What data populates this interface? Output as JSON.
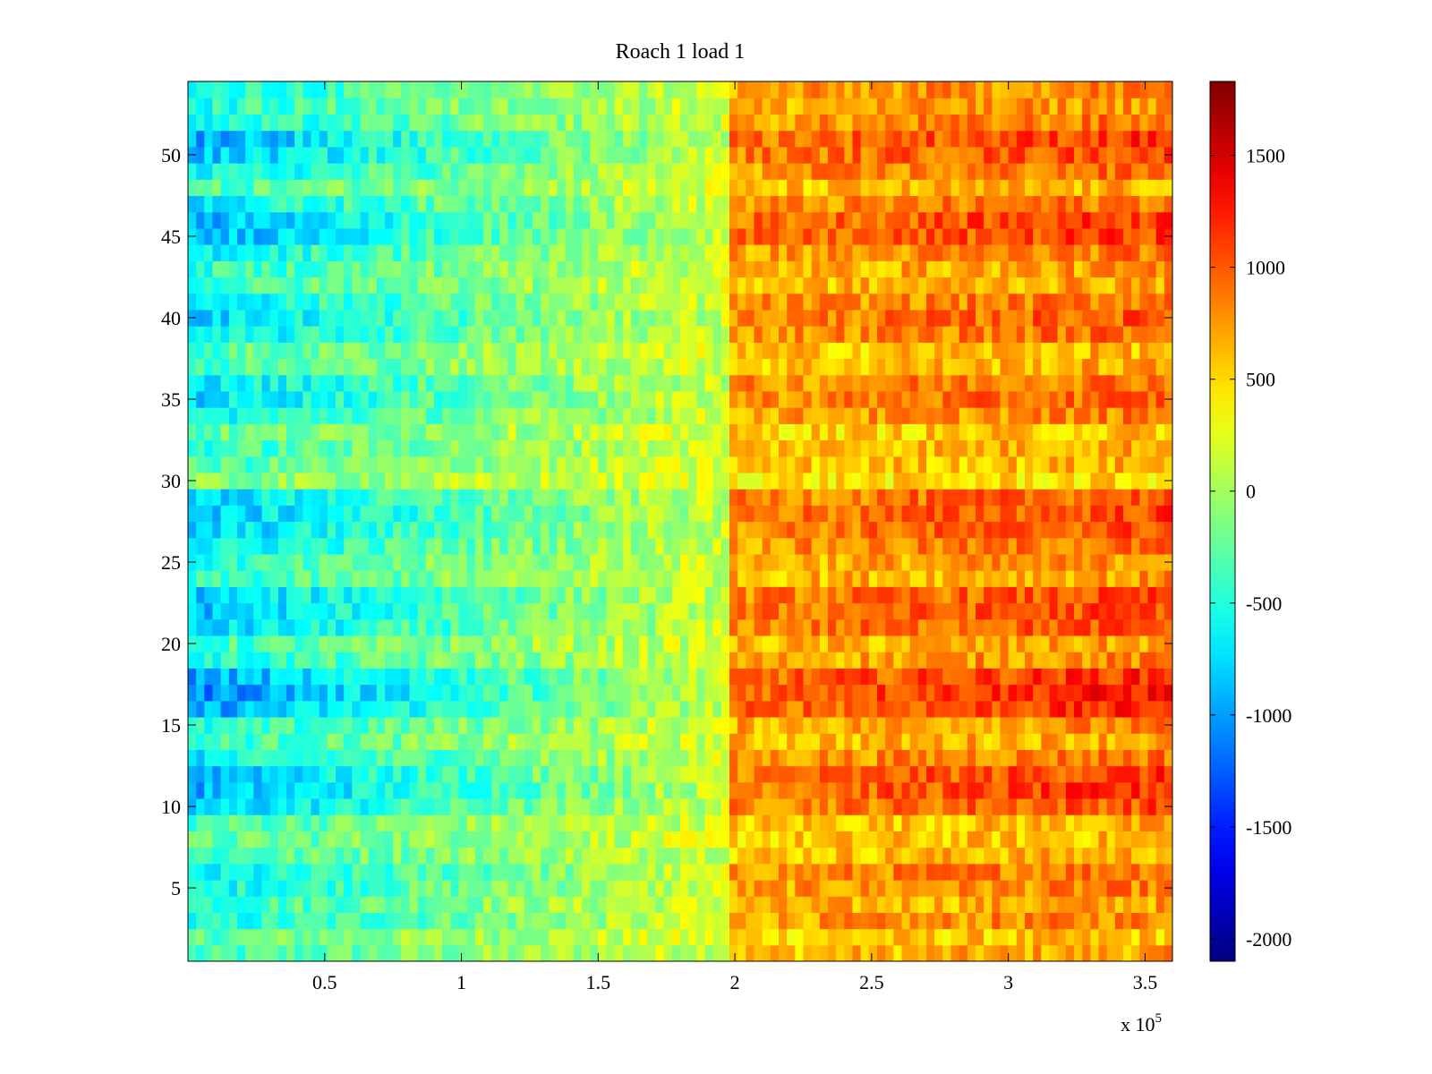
{
  "chart_data": {
    "type": "heatmap",
    "title": "Roach 1 load 1",
    "xlabel": "",
    "ylabel": "",
    "x_multiplier_label": "x 10",
    "x_multiplier_exponent": "5",
    "x_range": [
      0,
      360000
    ],
    "y_range": [
      0.5,
      54.5
    ],
    "x_ticks": [
      {
        "value": 0.5,
        "label": "0.5"
      },
      {
        "value": 1,
        "label": "1"
      },
      {
        "value": 1.5,
        "label": "1.5"
      },
      {
        "value": 2,
        "label": "2"
      },
      {
        "value": 2.5,
        "label": "2.5"
      },
      {
        "value": 3,
        "label": "3"
      },
      {
        "value": 3.5,
        "label": "3.5"
      }
    ],
    "y_ticks": [
      {
        "value": 5,
        "label": "5"
      },
      {
        "value": 10,
        "label": "10"
      },
      {
        "value": 15,
        "label": "15"
      },
      {
        "value": 20,
        "label": "20"
      },
      {
        "value": 25,
        "label": "25"
      },
      {
        "value": 30,
        "label": "30"
      },
      {
        "value": 35,
        "label": "35"
      },
      {
        "value": 40,
        "label": "40"
      },
      {
        "value": 45,
        "label": "45"
      },
      {
        "value": 50,
        "label": "50"
      }
    ],
    "colorbar": {
      "colormap": "jet",
      "clim": [
        -2100,
        1830
      ],
      "ticks": [
        {
          "value": 1500,
          "label": "1500"
        },
        {
          "value": 1000,
          "label": "1000"
        },
        {
          "value": 500,
          "label": "500"
        },
        {
          "value": 0,
          "label": "0"
        },
        {
          "value": -500,
          "label": "-500"
        },
        {
          "value": -1000,
          "label": "-1000"
        },
        {
          "value": -1500,
          "label": "-1500"
        },
        {
          "value": -2000,
          "label": "-2000"
        }
      ]
    },
    "rows": 54,
    "columns_sampled": 120,
    "row_profile_note": "Each row rises from negative (blue) at low x to positive (orange/red) at high x, with a sharp step near x = 1.97e5.",
    "row_strength": [
      0.55,
      0.35,
      0.75,
      0.55,
      0.75,
      0.9,
      0.5,
      0.4,
      0.45,
      1.05,
      1.2,
      1.15,
      0.85,
      0.55,
      0.7,
      1.25,
      1.4,
      1.25,
      0.7,
      0.55,
      1.05,
      1.1,
      1.05,
      0.6,
      0.65,
      0.85,
      1.05,
      1.1,
      1.0,
      0.2,
      0.45,
      0.55,
      0.35,
      0.75,
      0.95,
      0.9,
      0.5,
      0.45,
      0.9,
      1.0,
      0.85,
      0.55,
      0.6,
      0.8,
      1.15,
      1.2,
      0.85,
      0.45,
      0.85,
      1.1,
      1.2,
      0.8,
      0.65,
      0.75
    ]
  }
}
